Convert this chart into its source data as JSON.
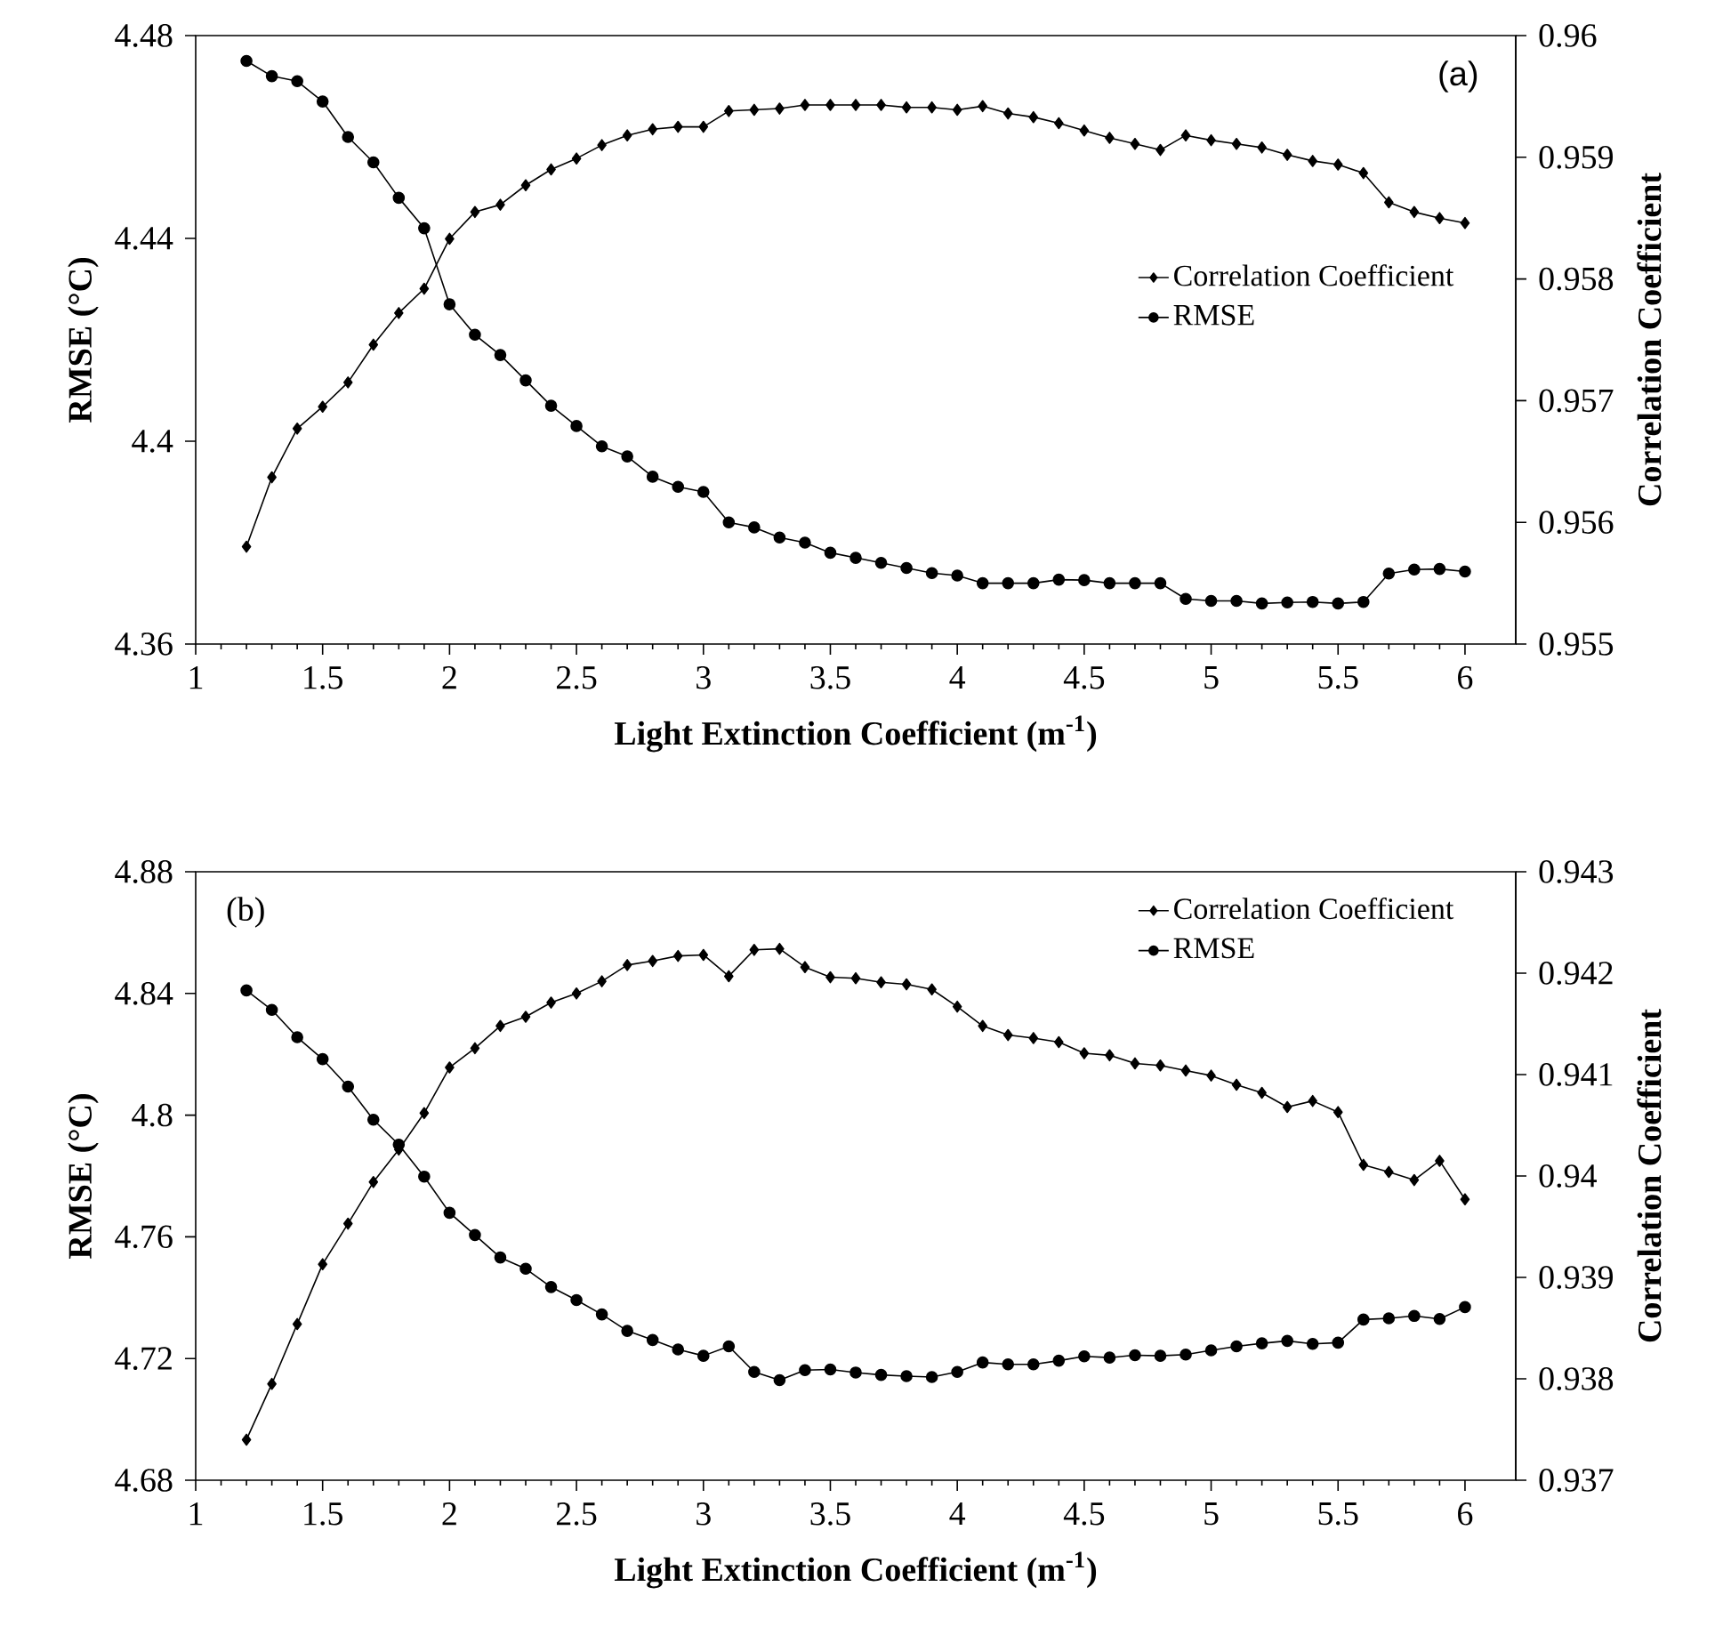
{
  "chart_data": [
    {
      "type": "line",
      "xlabel": "**Light Extinction Coefficient (m$^{-1}$)**",
      "ylabel": "**RMSE (°C)**",
      "y2label": "**Correlation Coefficient**",
      "legend": "right",
      "annotations": [
        "(a)"
      ],
      "x": [
        1.2,
        1.3,
        1.4,
        1.5,
        1.6,
        1.7,
        1.8,
        1.9,
        2.0,
        2.1,
        2.2,
        2.3,
        2.4,
        2.5,
        2.6,
        2.7,
        2.8,
        2.9,
        3.0,
        3.1,
        3.2,
        3.3,
        3.4,
        3.5,
        3.6,
        3.7,
        3.8,
        3.9,
        4.0,
        4.1,
        4.2,
        4.3,
        4.4,
        4.5,
        4.6,
        4.7,
        4.8,
        4.9,
        5.0,
        5.1,
        5.2,
        5.3,
        5.4,
        5.5,
        5.6,
        5.7,
        5.8,
        5.9,
        6.0
      ],
      "xlim": [
        1,
        6.2
      ],
      "xticks": [
        1,
        1.5,
        2,
        2.5,
        3,
        3.5,
        4,
        4.5,
        5,
        5.5,
        6
      ],
      "ylim": [
        4.36,
        4.48
      ],
      "yticks": [
        4.36,
        4.4,
        4.44,
        4.48
      ],
      "y2lim": [
        0.955,
        0.96
      ],
      "y2ticks": [
        0.955,
        0.956,
        0.957,
        0.958,
        0.959,
        0.96
      ],
      "series": [
        {
          "name": "Correlation Coefficient",
          "color": "#000000",
          "axis": "y2",
          "marker": "diamond",
          "values": [
            0.9558,
            0.95637,
            0.95677,
            0.95695,
            0.95715,
            0.95746,
            0.95772,
            0.95792,
            0.95833,
            0.95855,
            0.95861,
            0.95877,
            0.9589,
            0.95899,
            0.9591,
            0.95918,
            0.95923,
            0.95925,
            0.95925,
            0.95938,
            0.95939,
            0.9594,
            0.95943,
            0.95943,
            0.95943,
            0.95943,
            0.95941,
            0.95941,
            0.95939,
            0.95942,
            0.95936,
            0.95933,
            0.95928,
            0.95922,
            0.95916,
            0.95911,
            0.95906,
            0.95918,
            0.95914,
            0.95911,
            0.95908,
            0.95902,
            0.95897,
            0.95894,
            0.95887,
            0.95863,
            0.95855,
            0.9585,
            0.95846
          ]
        },
        {
          "name": "RMSE",
          "color": "#000000",
          "marker": "circle",
          "values": [
            4.475,
            4.472,
            4.471,
            4.467,
            4.46,
            4.455,
            4.448,
            4.442,
            4.427,
            4.421,
            4.417,
            4.412,
            4.407,
            4.403,
            4.399,
            4.397,
            4.393,
            4.391,
            4.39,
            4.384,
            4.383,
            4.381,
            4.38,
            4.378,
            4.377,
            4.376,
            4.375,
            4.374,
            4.3735,
            4.372,
            4.372,
            4.372,
            4.3727,
            4.3726,
            4.372,
            4.372,
            4.372,
            4.3689,
            4.3685,
            4.3685,
            4.368,
            4.3682,
            4.3683,
            4.368,
            4.3683,
            4.3739,
            4.3747,
            4.3748,
            4.3743
          ]
        }
      ]
    },
    {
      "type": "line",
      "xlabel": "**Light Extinction Coefficient (m$^{-1}$)**",
      "ylabel": "**RMSE (°C)**",
      "y2label": "**Correlation Coefficient**",
      "legend": "top right",
      "annotations": [
        "(b)"
      ],
      "x": [
        1.2,
        1.3,
        1.4,
        1.5,
        1.6,
        1.7,
        1.8,
        1.9,
        2.0,
        2.1,
        2.2,
        2.3,
        2.4,
        2.5,
        2.6,
        2.7,
        2.8,
        2.9,
        3.0,
        3.1,
        3.2,
        3.3,
        3.4,
        3.5,
        3.6,
        3.7,
        3.8,
        3.9,
        4.0,
        4.1,
        4.2,
        4.3,
        4.4,
        4.5,
        4.6,
        4.7,
        4.8,
        4.9,
        5.0,
        5.1,
        5.2,
        5.3,
        5.4,
        5.5,
        5.6,
        5.7,
        5.8,
        5.9,
        6.0
      ],
      "xlim": [
        1,
        6.2
      ],
      "xticks": [
        1,
        1.5,
        2,
        2.5,
        3,
        3.5,
        4,
        4.5,
        5,
        5.5,
        6
      ],
      "ylim": [
        4.68,
        4.88
      ],
      "yticks": [
        4.68,
        4.72,
        4.76,
        4.8,
        4.84,
        4.88
      ],
      "y2lim": [
        0.937,
        0.943
      ],
      "y2ticks": [
        0.937,
        0.938,
        0.939,
        0.94,
        0.941,
        0.942,
        0.943
      ],
      "series": [
        {
          "name": "Correlation Coefficient",
          "color": "#000000",
          "axis": "y2",
          "marker": "diamond",
          "values": [
            0.9374,
            0.93795,
            0.93854,
            0.93913,
            0.93953,
            0.93994,
            0.94026,
            0.94062,
            0.94107,
            0.94126,
            0.94148,
            0.94157,
            0.94171,
            0.9418,
            0.94192,
            0.94208,
            0.94212,
            0.94217,
            0.94218,
            0.94197,
            0.94223,
            0.94224,
            0.94206,
            0.94196,
            0.94195,
            0.94191,
            0.94189,
            0.94184,
            0.94167,
            0.94148,
            0.94139,
            0.94136,
            0.94132,
            0.94121,
            0.94119,
            0.94111,
            0.94109,
            0.94104,
            0.94099,
            0.9409,
            0.94082,
            0.94068,
            0.94074,
            0.94063,
            0.94011,
            0.94004,
            0.93996,
            0.94015,
            0.93977
          ]
        },
        {
          "name": "RMSE",
          "color": "#000000",
          "marker": "circle",
          "values": [
            4.841,
            4.8346,
            4.8256,
            4.8184,
            4.8094,
            4.7985,
            4.7903,
            4.7798,
            4.7679,
            4.7606,
            4.7532,
            4.7495,
            4.7435,
            4.7392,
            4.7345,
            4.7291,
            4.7261,
            4.723,
            4.7209,
            4.724,
            4.7156,
            4.7129,
            4.7162,
            4.7164,
            4.7154,
            4.7146,
            4.7142,
            4.7139,
            4.7156,
            4.7187,
            4.7181,
            4.7181,
            4.7193,
            4.7207,
            4.7203,
            4.7211,
            4.7209,
            4.7213,
            4.7227,
            4.724,
            4.725,
            4.7258,
            4.7248,
            4.7252,
            4.7328,
            4.7332,
            4.734,
            4.733,
            4.7369
          ]
        }
      ]
    }
  ]
}
